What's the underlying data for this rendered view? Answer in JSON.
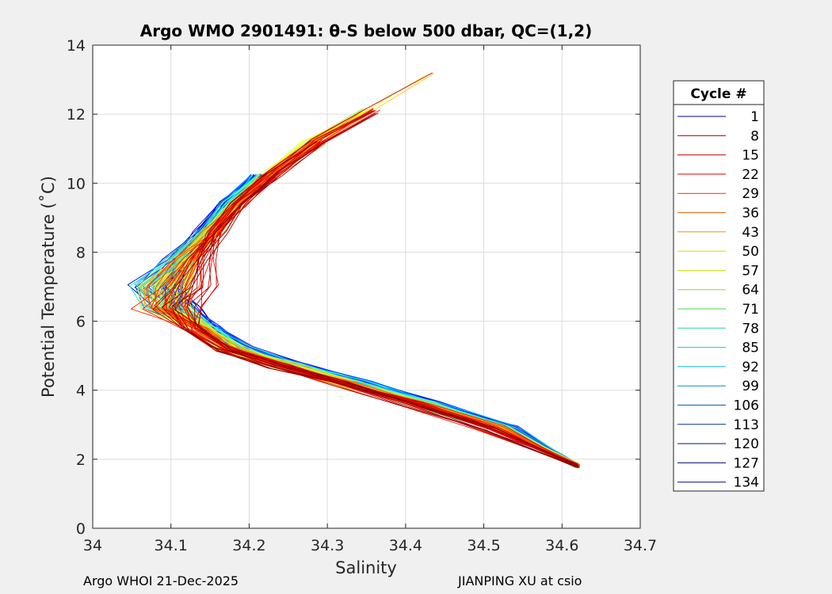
{
  "footer": {
    "left": "Argo WHOI 21-Dec-2025",
    "right": "JIANPING XU at csio"
  },
  "chart_data": {
    "type": "line",
    "title": "Argo WMO 2901491: θ-S below 500 dbar,  QC=(1,2)",
    "xlabel": "Salinity",
    "ylabel": "Potential Temperature (˚C)",
    "xlim": [
      34,
      34.7
    ],
    "ylim": [
      0,
      14
    ],
    "xticks": [
      34,
      34.1,
      34.2,
      34.3,
      34.4,
      34.5,
      34.6,
      34.7
    ],
    "xtick_labels": [
      "34",
      "34.1",
      "34.2",
      "34.3",
      "34.4",
      "34.5",
      "34.6",
      "34.7"
    ],
    "yticks": [
      0,
      2,
      4,
      6,
      8,
      10,
      12,
      14
    ],
    "ytick_labels": [
      "0",
      "2",
      "4",
      "6",
      "8",
      "10",
      "12",
      "14"
    ],
    "grid": true,
    "legend": {
      "title": "Cycle #",
      "placement": "outside-right",
      "entries": [
        {
          "label": "1",
          "color": "#00008f"
        },
        {
          "label": "8",
          "color": "#8b0000"
        },
        {
          "label": "15",
          "color": "#cc0000"
        },
        {
          "label": "22",
          "color": "#e60000"
        },
        {
          "label": "29",
          "color": "#ee3000"
        },
        {
          "label": "36",
          "color": "#e06a00"
        },
        {
          "label": "43",
          "color": "#d8a000"
        },
        {
          "label": "50",
          "color": "#e6d600"
        },
        {
          "label": "57",
          "color": "#c8e600"
        },
        {
          "label": "64",
          "color": "#8fe600"
        },
        {
          "label": "71",
          "color": "#40e040"
        },
        {
          "label": "78",
          "color": "#20d890"
        },
        {
          "label": "85",
          "color": "#00d0c0"
        },
        {
          "label": "92",
          "color": "#00b8e0"
        },
        {
          "label": "99",
          "color": "#0090d0"
        },
        {
          "label": "106",
          "color": "#0060c0"
        },
        {
          "label": "113",
          "color": "#0030a0"
        },
        {
          "label": "120",
          "color": "#001a8a"
        },
        {
          "label": "127",
          "color": "#000a80"
        },
        {
          "label": "134",
          "color": "#000a90"
        }
      ]
    },
    "envelope": {
      "note_curve_points": [
        [
          34.43,
          13.2
        ],
        [
          34.35,
          12.1
        ],
        [
          34.28,
          11.2
        ],
        [
          34.22,
          10.2
        ],
        [
          34.18,
          9.4
        ],
        [
          34.15,
          8.6
        ],
        [
          34.13,
          7.8
        ],
        [
          34.12,
          7.0
        ],
        [
          34.12,
          6.4
        ],
        [
          34.14,
          5.8
        ],
        [
          34.18,
          5.2
        ],
        [
          34.25,
          4.7
        ],
        [
          34.33,
          4.2
        ],
        [
          34.42,
          3.6
        ],
        [
          34.52,
          2.9
        ],
        [
          34.62,
          1.8
        ]
      ]
    }
  }
}
